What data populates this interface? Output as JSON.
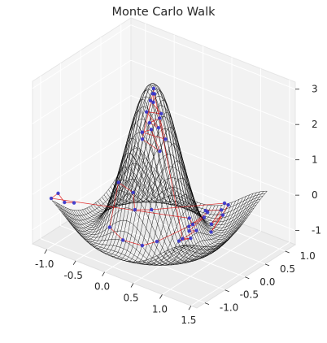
{
  "chart_data": {
    "type": "surface-3d",
    "title": "Monte Carlo Walk",
    "xlabel": "",
    "ylabel": "",
    "zlabel": "",
    "x_ticks": [
      "-1.0",
      "-0.5",
      "0.0",
      "0.5",
      "1.0",
      "1.5"
    ],
    "y_ticks": [
      "-1.0",
      "-0.5",
      "0.0",
      "0.5",
      "1.0"
    ],
    "z_ticks": [
      "-1",
      "0",
      "1",
      "2",
      "3"
    ],
    "xlim": [
      -1.25,
      1.6
    ],
    "ylim": [
      -1.2,
      1.25
    ],
    "zlim": [
      -1.4,
      3.2
    ],
    "grid": true,
    "surface": {
      "shape": "radial sinc ripple",
      "center": [
        0.0,
        0.0
      ],
      "peak_z": 2.9,
      "ring_z": -1.0,
      "ring_radius": 0.55,
      "edge_z": 0.0,
      "wire_color": "#000000"
    },
    "walk": {
      "point_color": "#3333cc",
      "line_color": "#dd1111",
      "points": [
        [
          0.0,
          0.02,
          2.9
        ],
        [
          0.05,
          -0.06,
          2.6
        ],
        [
          -0.07,
          0.04,
          2.5
        ],
        [
          0.09,
          0.08,
          2.2
        ],
        [
          -0.04,
          -0.1,
          2.3
        ],
        [
          0.12,
          -0.03,
          1.9
        ],
        [
          -0.12,
          0.09,
          1.8
        ],
        [
          0.03,
          0.13,
          2.0
        ],
        [
          0.15,
          0.1,
          1.5
        ],
        [
          -0.1,
          -0.12,
          1.7
        ],
        [
          0.07,
          -0.14,
          1.9
        ],
        [
          0.17,
          -0.07,
          1.3
        ],
        [
          -0.16,
          -0.03,
          1.4
        ],
        [
          0.02,
          -0.03,
          2.8
        ],
        [
          -0.02,
          0.07,
          2.7
        ],
        [
          0.55,
          -0.05,
          -0.95
        ],
        [
          0.6,
          0.08,
          -1.0
        ],
        [
          0.58,
          -0.18,
          -0.9
        ],
        [
          0.65,
          0.15,
          -0.8
        ],
        [
          0.7,
          -0.1,
          -0.6
        ],
        [
          0.75,
          0.2,
          -0.4
        ],
        [
          0.8,
          -0.25,
          -0.3
        ],
        [
          0.88,
          0.1,
          -0.1
        ],
        [
          0.95,
          -0.05,
          0.1
        ],
        [
          1.05,
          0.2,
          0.0
        ],
        [
          1.12,
          -0.15,
          -0.1
        ],
        [
          1.18,
          0.05,
          0.05
        ],
        [
          1.22,
          -0.3,
          -0.15
        ],
        [
          1.1,
          0.3,
          0.1
        ],
        [
          1.0,
          0.35,
          0.05
        ],
        [
          -0.3,
          0.4,
          -1.0
        ],
        [
          -0.45,
          0.2,
          -0.95
        ],
        [
          -0.55,
          0.3,
          -0.6
        ],
        [
          -0.7,
          0.15,
          -0.3
        ],
        [
          -0.4,
          -0.5,
          -0.9
        ],
        [
          -0.1,
          -0.6,
          -1.0
        ],
        [
          0.2,
          -0.55,
          -1.0
        ],
        [
          0.35,
          -0.4,
          -0.9
        ],
        [
          0.45,
          0.35,
          -0.9
        ],
        [
          0.25,
          0.55,
          -1.0
        ],
        [
          -1.1,
          -0.95,
          -0.2
        ],
        [
          -1.05,
          -0.85,
          -0.1
        ],
        [
          -0.8,
          -1.05,
          -0.05
        ],
        [
          -0.6,
          -1.1,
          0.1
        ]
      ]
    }
  }
}
